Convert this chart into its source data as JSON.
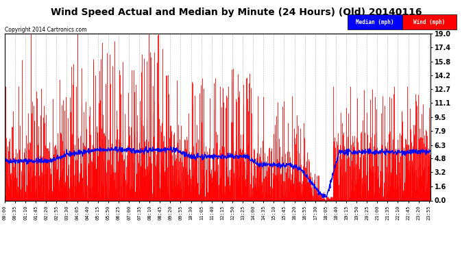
{
  "title": "Wind Speed Actual and Median by Minute (24 Hours) (Old) 20140116",
  "copyright": "Copyright 2014 Cartronics.com",
  "ylabel_right_ticks": [
    0.0,
    1.6,
    3.2,
    4.8,
    6.3,
    7.9,
    9.5,
    11.1,
    12.7,
    14.2,
    15.8,
    17.4,
    19.0
  ],
  "ylim": [
    0.0,
    19.0
  ],
  "wind_color": "#ff0000",
  "median_color": "#0000ff",
  "background_color": "#ffffff",
  "plot_bg_color": "#ffffff",
  "grid_color": "#b0b0b0",
  "title_fontsize": 11,
  "legend_labels": [
    "Median (mph)",
    "Wind (mph)"
  ],
  "legend_colors_bg": [
    "#0000ff",
    "#ff0000"
  ],
  "legend_text_color": "#ffffff",
  "num_minutes": 1440,
  "seed": 42,
  "tick_labels": [
    "00:00",
    "00:35",
    "01:10",
    "01:45",
    "02:20",
    "02:55",
    "03:30",
    "04:05",
    "04:40",
    "05:15",
    "05:50",
    "06:25",
    "07:00",
    "07:35",
    "08:10",
    "08:45",
    "09:20",
    "09:55",
    "10:30",
    "11:05",
    "11:40",
    "12:15",
    "12:50",
    "13:25",
    "14:00",
    "14:35",
    "15:10",
    "15:45",
    "16:20",
    "16:55",
    "17:30",
    "18:05",
    "18:40",
    "19:15",
    "19:50",
    "20:25",
    "21:00",
    "21:35",
    "22:10",
    "22:45",
    "23:20",
    "23:55"
  ]
}
